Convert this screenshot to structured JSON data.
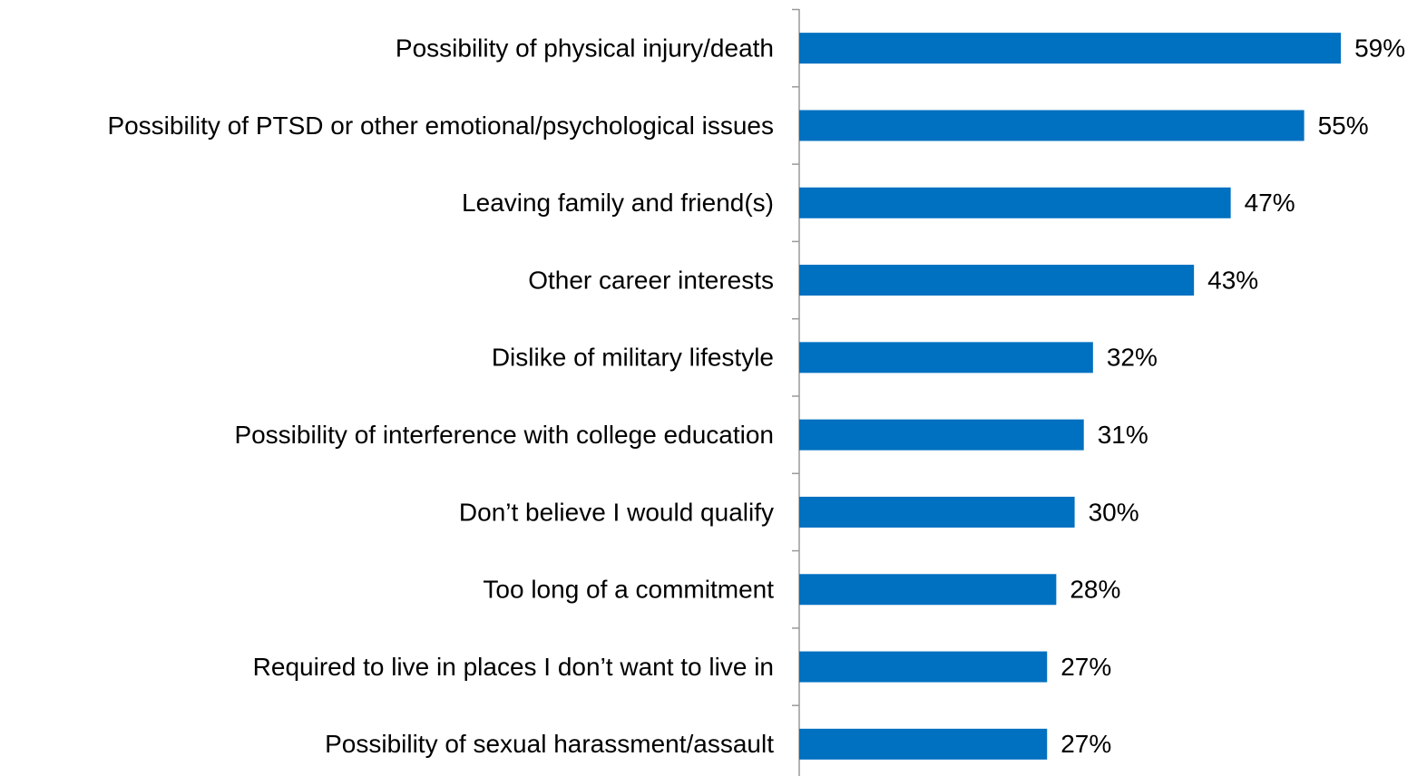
{
  "chart_data": {
    "type": "hbar",
    "categories": [
      "Possibility of physical injury/death",
      "Possibility of PTSD or other emotional/psychological issues",
      "Leaving family and friend(s)",
      "Other career interests",
      "Dislike of military lifestyle",
      "Possibility of interference with college education",
      "Don’t believe I would qualify",
      "Too long of a commitment",
      "Required to live in places I don’t want to live in",
      "Possibility of sexual harassment/assault"
    ],
    "values": [
      59,
      55,
      47,
      43,
      32,
      31,
      30,
      28,
      27,
      27
    ],
    "value_labels": [
      "59%",
      "55%",
      "47%",
      "43%",
      "32%",
      "31%",
      "30%",
      "28%",
      "27%",
      "27%"
    ],
    "color": "#0070c0"
  }
}
